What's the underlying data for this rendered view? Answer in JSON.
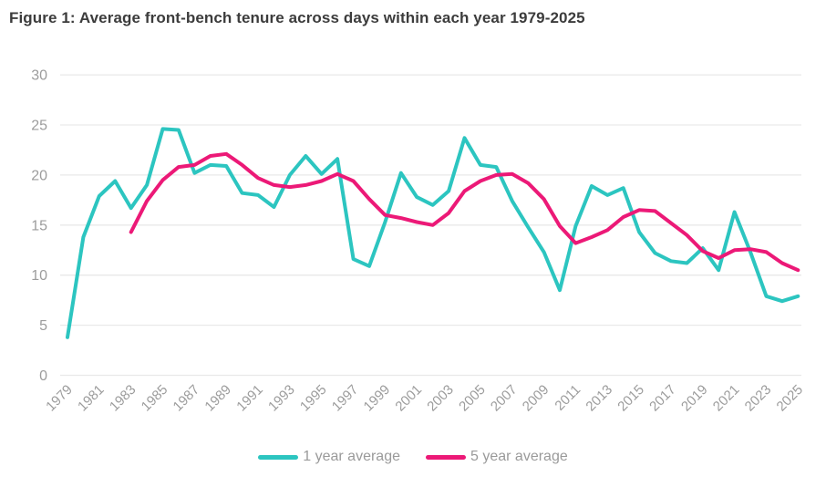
{
  "figure": {
    "title": "Figure 1: Average front-bench tenure across days within each year 1979-2025"
  },
  "axis": {
    "text_color": "#9c9c9c",
    "grid_color": "#e9e9e9"
  },
  "chart_data": {
    "type": "line",
    "title": "Figure 1: Average front-bench tenure across days within each year 1979-2025",
    "xlabel": "",
    "ylabel": "",
    "x_start": 1979,
    "x_end": 2025,
    "xticks": [
      1979,
      1981,
      1983,
      1985,
      1987,
      1989,
      1991,
      1993,
      1995,
      1997,
      1999,
      2001,
      2003,
      2005,
      2007,
      2009,
      2011,
      2013,
      2015,
      2017,
      2019,
      2021,
      2023,
      2025
    ],
    "yticks": [
      0,
      5,
      10,
      15,
      20,
      25,
      30
    ],
    "ylim": [
      0,
      30
    ],
    "grid": "horizontal",
    "legend_position": "bottom",
    "series": [
      {
        "name": "1 year average",
        "color": "#2cc5c0",
        "start_year": 1979,
        "values": [
          3.8,
          13.8,
          17.9,
          19.4,
          16.7,
          19.0,
          24.6,
          24.5,
          20.2,
          21.0,
          20.9,
          18.2,
          18.0,
          16.8,
          20.0,
          21.9,
          20.1,
          21.6,
          11.6,
          10.9,
          15.3,
          20.2,
          17.8,
          17.0,
          18.4,
          23.7,
          21.0,
          20.8,
          17.4,
          14.8,
          12.3,
          8.5,
          14.9,
          18.9,
          18.0,
          18.7,
          14.3,
          12.2,
          11.4,
          11.2,
          12.7,
          10.5,
          16.3,
          12.3,
          7.9,
          7.4,
          7.9
        ]
      },
      {
        "name": "5 year average",
        "color": "#ec1977",
        "start_year": 1983,
        "values": [
          14.3,
          17.4,
          19.5,
          20.8,
          21.0,
          21.9,
          22.1,
          21.0,
          19.7,
          19.0,
          18.8,
          19.0,
          19.4,
          20.1,
          19.4,
          17.6,
          16.0,
          15.7,
          15.3,
          15.0,
          16.2,
          18.4,
          19.4,
          20.0,
          20.1,
          19.2,
          17.6,
          14.9,
          13.2,
          13.8,
          14.5,
          15.8,
          16.5,
          16.4,
          15.2,
          14.0,
          12.4,
          11.7,
          12.5,
          12.6,
          12.3,
          11.2,
          10.5
        ]
      }
    ]
  }
}
